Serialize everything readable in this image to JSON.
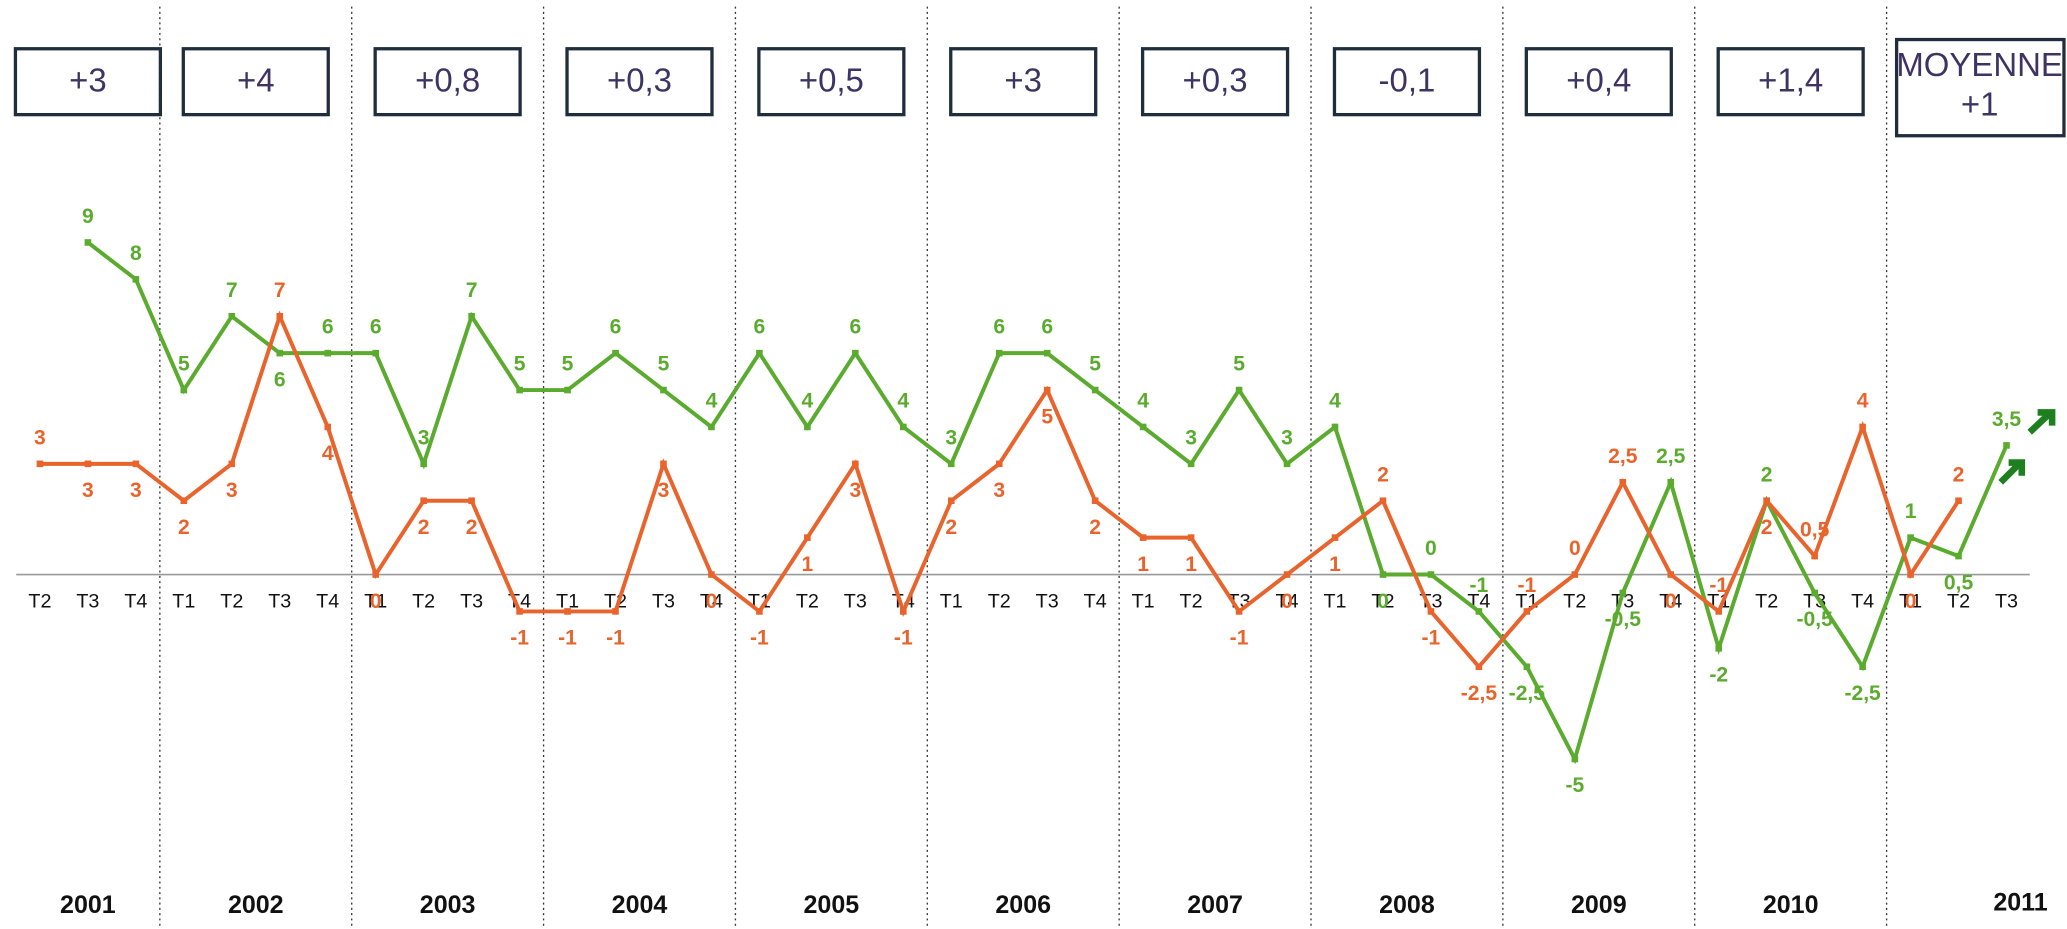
{
  "chart_data": {
    "type": "line",
    "categories": [
      "T2",
      "T3",
      "T4",
      "T1",
      "T2",
      "T3",
      "T4",
      "T1",
      "T2",
      "T3",
      "T4",
      "T1",
      "T2",
      "T3",
      "T4",
      "T1",
      "T2",
      "T3",
      "T4",
      "T1",
      "T2",
      "T3",
      "T4",
      "T1",
      "T2",
      "T3",
      "T4",
      "T1",
      "T2",
      "T3",
      "T4",
      "T1",
      "T2",
      "T3",
      "T4",
      "T1",
      "T2",
      "T3",
      "T4",
      "T1",
      "T2",
      "T3"
    ],
    "years": [
      "2001",
      "2002",
      "2003",
      "2004",
      "2005",
      "2006",
      "2007",
      "2008",
      "2009",
      "2010",
      "2011"
    ],
    "year_boxes": [
      "+3",
      "+4",
      "+0,8",
      "+0,3",
      "+0,5",
      "+3",
      "+0,3",
      "-0,1",
      "+0,4",
      "+1,4"
    ],
    "average_box": {
      "label": "MOYENNE",
      "value": "+1"
    },
    "ylim": [
      -10,
      10
    ],
    "series": [
      {
        "color": "#5aab2e",
        "values": [
          null,
          9,
          8,
          5,
          7,
          6,
          6,
          6,
          3,
          7,
          5,
          5,
          6,
          5,
          4,
          6,
          4,
          6,
          4,
          3,
          6,
          6,
          5,
          4,
          3,
          5,
          3,
          4,
          0,
          0,
          -1,
          -2.5,
          -5,
          -0.5,
          2.5,
          -2,
          2,
          -0.5,
          -2.5,
          1,
          0.5,
          3.5
        ],
        "value_labels": [
          null,
          "9",
          "8",
          "5",
          "7",
          "6",
          "6",
          "6",
          "3",
          "7",
          "5",
          "5",
          "6",
          "5",
          "4",
          "6",
          "4",
          "6",
          "4",
          "3",
          "6",
          "6",
          "5",
          "4",
          "3",
          "5",
          "3",
          "4",
          "0",
          "0",
          "-1",
          "-2,5",
          "-5",
          "-0,5",
          "2,5",
          "-2",
          "2",
          "-0,5",
          "-2,5",
          "1",
          "0,5",
          "3,5"
        ]
      },
      {
        "color": "#e8642c",
        "values": [
          3,
          3,
          3,
          2,
          3,
          7,
          4,
          0,
          2,
          2,
          -1,
          -1,
          -1,
          3,
          0,
          -1,
          1,
          3,
          -1,
          2,
          3,
          5,
          2,
          1,
          1,
          -1,
          0,
          1,
          2,
          -1,
          -2.5,
          -1,
          0,
          2.5,
          0,
          -1,
          2,
          0.5,
          4,
          0,
          2,
          null
        ],
        "value_labels": [
          "3",
          "3",
          "3",
          "2",
          "3",
          "7",
          "4",
          "0",
          "2",
          "2",
          "-1",
          "-1",
          "-1",
          "3",
          "0",
          "-1",
          "1",
          "3",
          "-1",
          "2",
          "3",
          "5",
          "2",
          "1",
          "1",
          "-1",
          "0",
          "1",
          "2",
          "-1",
          "-2,5",
          "-1",
          "0",
          "2,5",
          "0",
          "-1",
          "2",
          "0,5",
          "4",
          "0",
          "2",
          null
        ]
      }
    ]
  }
}
